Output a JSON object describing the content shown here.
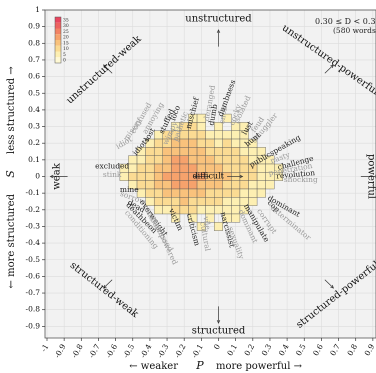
{
  "chart_data": {
    "type": "heatmap",
    "xlabel_left": "← weaker",
    "xlabel_var": "P",
    "xlabel_right": "more powerful →",
    "ylabel_left": "← more structured",
    "ylabel_var": "S",
    "ylabel_right": "less structured →",
    "xlim": [
      -1,
      1
    ],
    "ylim": [
      -1,
      1
    ],
    "x_ticks": [
      "-1",
      "-0.9",
      "-0.8",
      "-0.7",
      "-0.6",
      "-0.5",
      "-0.4",
      "-0.3",
      "-0.2",
      "-0.1",
      "0",
      "0.1",
      "0.2",
      "0.3",
      "0.4",
      "0.5",
      "0.6",
      "0.7",
      "0.8",
      "0.9"
    ],
    "x_tick_values": [
      -1,
      -0.9,
      -0.8,
      -0.7,
      -0.6,
      -0.5,
      -0.4,
      -0.3,
      -0.2,
      -0.1,
      0,
      0.1,
      0.2,
      0.3,
      0.4,
      0.5,
      0.6,
      0.7,
      0.8,
      0.9
    ],
    "y_ticks": [
      "1",
      "0.9",
      "0.8",
      "0.7",
      "0.6",
      "0.5",
      "0.4",
      "0.3",
      "0.2",
      "0.1",
      "0",
      "-0.1",
      "-0.2",
      "-0.3",
      "-0.4",
      "-0.5",
      "-0.6",
      "-0.7",
      "-0.8",
      "-0.9"
    ],
    "y_tick_values": [
      1,
      0.9,
      0.8,
      0.7,
      0.6,
      0.5,
      0.4,
      0.3,
      0.2,
      0.1,
      0,
      -0.1,
      -0.2,
      -0.3,
      -0.4,
      -0.5,
      -0.6,
      -0.7,
      -0.8,
      -0.9
    ],
    "grid": true,
    "subset_label": "0.30 ≤ D < 0.35",
    "word_count_label": "(580 words)",
    "colorbar": {
      "labels": [
        "35",
        "30",
        "25",
        "20",
        "15",
        "10",
        "5",
        "0"
      ],
      "colors": [
        "#e8455e",
        "#ed6260",
        "#f28264",
        "#f6a26c",
        "#f9c27c",
        "#fbdb93",
        "#fdefb2",
        "#fff9d4"
      ]
    },
    "compass": {
      "top": "unstructured",
      "bottom": "structured",
      "left": "weak",
      "right": "powerful",
      "top_left": "unstructured-weak",
      "top_right": "unstructured-powerful",
      "bottom_left": "structured-weak",
      "bottom_right": "structured-powerful"
    },
    "center_word": "difficult",
    "words": [
      {
        "text": "excluded",
        "x": -0.62,
        "y": 0.06,
        "shade": "dark",
        "angle": 0
      },
      {
        "text": "stink",
        "x": -0.62,
        "y": 0.01,
        "shade": "light",
        "angle": 0
      },
      {
        "text": "idiot",
        "x": -0.55,
        "y": 0.2,
        "shade": "light",
        "angle": -30
      },
      {
        "text": "idiots",
        "x": -0.45,
        "y": 0.18,
        "shade": "dark",
        "angle": -50
      },
      {
        "text": "misery",
        "x": -0.5,
        "y": 0.28,
        "shade": "light",
        "angle": -55
      },
      {
        "text": "lost",
        "x": -0.4,
        "y": 0.25,
        "shade": "dark",
        "angle": -60
      },
      {
        "text": "annoying",
        "x": -0.38,
        "y": 0.35,
        "shade": "light",
        "angle": -60
      },
      {
        "text": "confused",
        "x": -0.45,
        "y": 0.35,
        "shade": "light",
        "angle": -60
      },
      {
        "text": "stuffed",
        "x": -0.3,
        "y": 0.33,
        "shade": "dark",
        "angle": -65
      },
      {
        "text": "wimpy",
        "x": -0.28,
        "y": 0.26,
        "shade": "light",
        "angle": -65
      },
      {
        "text": "loco",
        "x": -0.25,
        "y": 0.38,
        "shade": "dark",
        "angle": -70
      },
      {
        "text": "pathetic",
        "x": -0.22,
        "y": 0.3,
        "shade": "light",
        "angle": -70
      },
      {
        "text": "mischief",
        "x": -0.15,
        "y": 0.38,
        "shade": "dark",
        "angle": -75
      },
      {
        "text": "deranged",
        "x": -0.05,
        "y": 0.44,
        "shade": "light",
        "angle": -80
      },
      {
        "text": "dumb",
        "x": -0.03,
        "y": 0.37,
        "shade": "dark",
        "angle": -80
      },
      {
        "text": "snob",
        "x": 0.03,
        "y": 0.37,
        "shade": "light",
        "angle": -80
      },
      {
        "text": "dumbness",
        "x": 0.05,
        "y": 0.47,
        "shade": "dark",
        "angle": -70
      },
      {
        "text": "cocky",
        "x": 0.1,
        "y": 0.37,
        "shade": "light",
        "angle": -70
      },
      {
        "text": "isolated",
        "x": 0.14,
        "y": 0.4,
        "shade": "light",
        "angle": -65
      },
      {
        "text": "lust",
        "x": 0.17,
        "y": 0.29,
        "shade": "dark",
        "angle": -60
      },
      {
        "text": "feud",
        "x": 0.23,
        "y": 0.31,
        "shade": "light",
        "angle": -55
      },
      {
        "text": "smuggler",
        "x": 0.27,
        "y": 0.29,
        "shade": "light",
        "angle": -50
      },
      {
        "text": "hunt",
        "x": 0.2,
        "y": 0.22,
        "shade": "dark",
        "angle": -40
      },
      {
        "text": "publicspeaking",
        "x": 0.33,
        "y": 0.15,
        "shade": "dark",
        "angle": -30
      },
      {
        "text": "nasty",
        "x": 0.36,
        "y": 0.11,
        "shade": "light",
        "angle": -20
      },
      {
        "text": "challenge",
        "x": 0.45,
        "y": 0.08,
        "shade": "dark",
        "angle": -15
      },
      {
        "text": "penetration",
        "x": 0.42,
        "y": 0.04,
        "shade": "light",
        "angle": -10
      },
      {
        "text": "revolution",
        "x": 0.45,
        "y": 0.01,
        "shade": "dark",
        "angle": -5
      },
      {
        "text": "shocking",
        "x": 0.48,
        "y": -0.02,
        "shade": "light",
        "angle": 0
      },
      {
        "text": "mine",
        "x": -0.52,
        "y": -0.08,
        "shade": "dark",
        "angle": 0
      },
      {
        "text": "sorrow",
        "x": -0.5,
        "y": -0.13,
        "shade": "light",
        "angle": 20
      },
      {
        "text": "dead",
        "x": -0.48,
        "y": -0.18,
        "shade": "dark",
        "angle": 30
      },
      {
        "text": "deathbeon",
        "x": -0.45,
        "y": -0.25,
        "shade": "dark",
        "angle": 45
      },
      {
        "text": "conditioning",
        "x": -0.45,
        "y": -0.32,
        "shade": "light",
        "angle": 50
      },
      {
        "text": "overweight",
        "x": -0.38,
        "y": -0.25,
        "shade": "dark",
        "angle": 55
      },
      {
        "text": "embarrassed",
        "x": -0.35,
        "y": -0.32,
        "shade": "light",
        "angle": 60
      },
      {
        "text": "unempowered",
        "x": -0.32,
        "y": -0.38,
        "shade": "light",
        "angle": 65
      },
      {
        "text": "victim",
        "x": -0.25,
        "y": -0.26,
        "shade": "dark",
        "angle": 65
      },
      {
        "text": "criticism",
        "x": -0.15,
        "y": -0.32,
        "shade": "dark",
        "angle": 75
      },
      {
        "text": "vile",
        "x": -0.07,
        "y": -0.28,
        "shade": "light",
        "angle": 80
      },
      {
        "text": "cultural",
        "x": -0.08,
        "y": -0.36,
        "shade": "light",
        "angle": 80
      },
      {
        "text": "narcissist",
        "x": 0.05,
        "y": -0.32,
        "shade": "dark",
        "angle": 75
      },
      {
        "text": "sexuality",
        "x": 0.1,
        "y": -0.4,
        "shade": "light",
        "angle": 70
      },
      {
        "text": "dominant",
        "x": 0.17,
        "y": -0.3,
        "shade": "light",
        "angle": 65
      },
      {
        "text": "manipulate",
        "x": 0.22,
        "y": -0.28,
        "shade": "dark",
        "angle": 60
      },
      {
        "text": "corrupt",
        "x": 0.28,
        "y": -0.27,
        "shade": "light",
        "angle": 55
      },
      {
        "text": "cop",
        "x": 0.32,
        "y": -0.18,
        "shade": "dark",
        "angle": 45
      },
      {
        "text": "dominant",
        "x": 0.38,
        "y": -0.18,
        "shade": "dark",
        "angle": 30
      },
      {
        "text": "exterminator",
        "x": 0.42,
        "y": -0.28,
        "shade": "light",
        "angle": 40
      }
    ],
    "heat_cells": [
      [
        -0.15,
        0.35,
        1
      ],
      [
        -0.1,
        0.35,
        1
      ],
      [
        0.05,
        0.35,
        1
      ],
      [
        -0.25,
        0.3,
        1
      ],
      [
        -0.2,
        0.3,
        2
      ],
      [
        -0.15,
        0.3,
        2
      ],
      [
        -0.1,
        0.3,
        1
      ],
      [
        0.0,
        0.3,
        1
      ],
      [
        0.1,
        0.3,
        1
      ],
      [
        0.15,
        0.3,
        1
      ],
      [
        -0.35,
        0.25,
        1
      ],
      [
        -0.3,
        0.25,
        2
      ],
      [
        -0.25,
        0.25,
        2
      ],
      [
        -0.2,
        0.25,
        2
      ],
      [
        -0.15,
        0.25,
        2
      ],
      [
        -0.1,
        0.25,
        2
      ],
      [
        -0.05,
        0.25,
        1
      ],
      [
        0.0,
        0.25,
        1
      ],
      [
        0.05,
        0.25,
        1
      ],
      [
        0.1,
        0.25,
        1
      ],
      [
        0.15,
        0.25,
        1
      ],
      [
        -0.4,
        0.2,
        1
      ],
      [
        -0.35,
        0.2,
        2
      ],
      [
        -0.3,
        0.2,
        2
      ],
      [
        -0.25,
        0.2,
        3
      ],
      [
        -0.2,
        0.2,
        3
      ],
      [
        -0.15,
        0.2,
        3
      ],
      [
        -0.1,
        0.2,
        2
      ],
      [
        -0.05,
        0.2,
        2
      ],
      [
        0.0,
        0.2,
        1
      ],
      [
        0.05,
        0.2,
        2
      ],
      [
        0.1,
        0.2,
        1
      ],
      [
        0.15,
        0.2,
        1
      ],
      [
        0.2,
        0.2,
        1
      ],
      [
        -0.45,
        0.15,
        1
      ],
      [
        -0.4,
        0.15,
        2
      ],
      [
        -0.35,
        0.15,
        2
      ],
      [
        -0.3,
        0.15,
        3
      ],
      [
        -0.25,
        0.15,
        3
      ],
      [
        -0.2,
        0.15,
        3
      ],
      [
        -0.15,
        0.15,
        3
      ],
      [
        -0.1,
        0.15,
        3
      ],
      [
        -0.05,
        0.15,
        2
      ],
      [
        0.0,
        0.15,
        2
      ],
      [
        0.05,
        0.15,
        2
      ],
      [
        0.1,
        0.15,
        2
      ],
      [
        0.15,
        0.15,
        1
      ],
      [
        0.2,
        0.15,
        1
      ],
      [
        0.25,
        0.15,
        1
      ],
      [
        -0.5,
        0.1,
        1
      ],
      [
        -0.45,
        0.1,
        1
      ],
      [
        -0.4,
        0.1,
        2
      ],
      [
        -0.35,
        0.1,
        2
      ],
      [
        -0.3,
        0.1,
        3
      ],
      [
        -0.25,
        0.1,
        4
      ],
      [
        -0.2,
        0.1,
        4
      ],
      [
        -0.15,
        0.1,
        3
      ],
      [
        -0.1,
        0.1,
        3
      ],
      [
        -0.05,
        0.1,
        3
      ],
      [
        0.0,
        0.1,
        2
      ],
      [
        0.05,
        0.1,
        2
      ],
      [
        0.1,
        0.1,
        2
      ],
      [
        0.15,
        0.1,
        2
      ],
      [
        0.2,
        0.1,
        1
      ],
      [
        0.25,
        0.1,
        1
      ],
      [
        0.3,
        0.1,
        1
      ],
      [
        -0.55,
        0.05,
        1
      ],
      [
        -0.5,
        0.05,
        1
      ],
      [
        -0.45,
        0.05,
        2
      ],
      [
        -0.4,
        0.05,
        2
      ],
      [
        -0.35,
        0.05,
        3
      ],
      [
        -0.3,
        0.05,
        3
      ],
      [
        -0.25,
        0.05,
        4
      ],
      [
        -0.2,
        0.05,
        4
      ],
      [
        -0.15,
        0.05,
        4
      ],
      [
        -0.1,
        0.05,
        3
      ],
      [
        -0.05,
        0.05,
        3
      ],
      [
        0.0,
        0.05,
        3
      ],
      [
        0.05,
        0.05,
        2
      ],
      [
        0.1,
        0.05,
        2
      ],
      [
        0.15,
        0.05,
        2
      ],
      [
        0.2,
        0.05,
        2
      ],
      [
        0.25,
        0.05,
        1
      ],
      [
        0.3,
        0.05,
        1
      ],
      [
        0.35,
        0.05,
        1
      ],
      [
        -0.55,
        0.0,
        1
      ],
      [
        -0.5,
        0.0,
        2
      ],
      [
        -0.45,
        0.0,
        2
      ],
      [
        -0.4,
        0.0,
        2
      ],
      [
        -0.35,
        0.0,
        3
      ],
      [
        -0.3,
        0.0,
        4
      ],
      [
        -0.25,
        0.0,
        4
      ],
      [
        -0.2,
        0.0,
        5
      ],
      [
        -0.15,
        0.0,
        4
      ],
      [
        -0.1,
        0.0,
        4
      ],
      [
        -0.05,
        0.0,
        3
      ],
      [
        0.0,
        0.0,
        3
      ],
      [
        0.05,
        0.0,
        3
      ],
      [
        0.1,
        0.0,
        2
      ],
      [
        0.15,
        0.0,
        2
      ],
      [
        0.2,
        0.0,
        2
      ],
      [
        0.25,
        0.0,
        1
      ],
      [
        0.3,
        0.0,
        1
      ],
      [
        0.35,
        0.0,
        1
      ],
      [
        -0.5,
        -0.05,
        1
      ],
      [
        -0.45,
        -0.05,
        2
      ],
      [
        -0.4,
        -0.05,
        2
      ],
      [
        -0.35,
        -0.05,
        3
      ],
      [
        -0.3,
        -0.05,
        3
      ],
      [
        -0.25,
        -0.05,
        4
      ],
      [
        -0.2,
        -0.05,
        4
      ],
      [
        -0.15,
        -0.05,
        4
      ],
      [
        -0.1,
        -0.05,
        3
      ],
      [
        -0.05,
        -0.05,
        3
      ],
      [
        0.0,
        -0.05,
        3
      ],
      [
        0.05,
        -0.05,
        2
      ],
      [
        0.1,
        -0.05,
        2
      ],
      [
        0.15,
        -0.05,
        2
      ],
      [
        0.2,
        -0.05,
        1
      ],
      [
        0.25,
        -0.05,
        1
      ],
      [
        0.3,
        -0.05,
        1
      ],
      [
        -0.45,
        -0.1,
        1
      ],
      [
        -0.4,
        -0.1,
        2
      ],
      [
        -0.35,
        -0.1,
        2
      ],
      [
        -0.3,
        -0.1,
        3
      ],
      [
        -0.25,
        -0.1,
        3
      ],
      [
        -0.2,
        -0.1,
        3
      ],
      [
        -0.15,
        -0.1,
        3
      ],
      [
        -0.1,
        -0.1,
        3
      ],
      [
        -0.05,
        -0.1,
        2
      ],
      [
        0.0,
        -0.1,
        2
      ],
      [
        0.05,
        -0.1,
        2
      ],
      [
        0.1,
        -0.1,
        2
      ],
      [
        0.15,
        -0.1,
        1
      ],
      [
        0.2,
        -0.1,
        1
      ],
      [
        0.25,
        -0.1,
        1
      ],
      [
        -0.4,
        -0.15,
        1
      ],
      [
        -0.35,
        -0.15,
        2
      ],
      [
        -0.3,
        -0.15,
        2
      ],
      [
        -0.25,
        -0.15,
        2
      ],
      [
        -0.2,
        -0.15,
        3
      ],
      [
        -0.15,
        -0.15,
        2
      ],
      [
        -0.1,
        -0.15,
        2
      ],
      [
        -0.05,
        -0.15,
        2
      ],
      [
        0.0,
        -0.15,
        2
      ],
      [
        0.05,
        -0.15,
        1
      ],
      [
        0.1,
        -0.15,
        1
      ],
      [
        0.15,
        -0.15,
        1
      ],
      [
        0.2,
        -0.15,
        1
      ],
      [
        -0.35,
        -0.2,
        1
      ],
      [
        -0.3,
        -0.2,
        1
      ],
      [
        -0.25,
        -0.2,
        2
      ],
      [
        -0.2,
        -0.2,
        2
      ],
      [
        -0.15,
        -0.2,
        2
      ],
      [
        -0.1,
        -0.2,
        1
      ],
      [
        -0.05,
        -0.2,
        1
      ],
      [
        0.0,
        -0.2,
        1
      ],
      [
        0.05,
        -0.2,
        1
      ],
      [
        0.1,
        -0.2,
        1
      ],
      [
        0.15,
        -0.2,
        1
      ],
      [
        -0.25,
        -0.25,
        1
      ],
      [
        -0.15,
        -0.25,
        1
      ],
      [
        -0.05,
        -0.25,
        1
      ],
      [
        0.05,
        -0.25,
        1
      ],
      [
        0.1,
        -0.25,
        1
      ],
      [
        -0.1,
        -0.3,
        1
      ],
      [
        0.0,
        -0.3,
        1
      ]
    ]
  }
}
